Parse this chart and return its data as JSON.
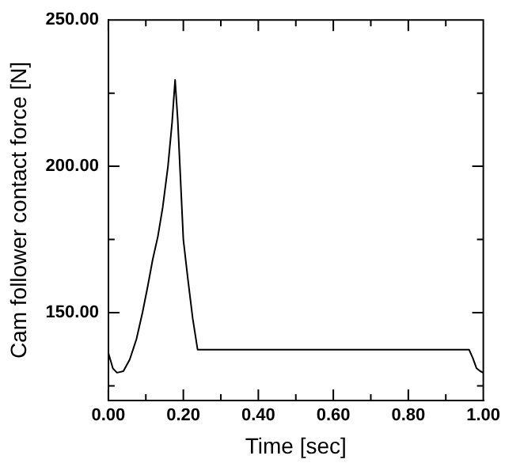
{
  "chart_data": {
    "type": "line",
    "xlabel": "Time [sec]",
    "ylabel": "Cam follower contact force [N]",
    "x": [
      0,
      0.012,
      0.023,
      0.04,
      0.057,
      0.075,
      0.091,
      0.105,
      0.118,
      0.132,
      0.145,
      0.159,
      0.17,
      0.178,
      0.185,
      0.2,
      0.212,
      0.225,
      0.238,
      0.26,
      0.4,
      0.6,
      0.8,
      0.962,
      0.972,
      0.982,
      0.992,
      1.0
    ],
    "series": [
      {
        "color": "#000000",
        "values": [
          136.3,
          131,
          129.5,
          130,
          134,
          141,
          150,
          159,
          168,
          176,
          186,
          200,
          215,
          229.5,
          216,
          175,
          161.6,
          148,
          137.4,
          137.4,
          137.4,
          137.4,
          137.4,
          137.4,
          134.5,
          131,
          130,
          129.5
        ]
      }
    ],
    "xlim": [
      0,
      1
    ],
    "ylim": [
      120,
      250
    ],
    "xticks": [
      {
        "value": 0,
        "label": "0.00"
      },
      {
        "value": 0.1,
        "label": null
      },
      {
        "value": 0.2,
        "label": "0.20"
      },
      {
        "value": 0.3,
        "label": null
      },
      {
        "value": 0.4,
        "label": "0.40"
      },
      {
        "value": 0.5,
        "label": null
      },
      {
        "value": 0.6,
        "label": "0.60"
      },
      {
        "value": 0.7,
        "label": null
      },
      {
        "value": 0.8,
        "label": "0.80"
      },
      {
        "value": 0.9,
        "label": null
      },
      {
        "value": 1,
        "label": "1.00"
      }
    ],
    "yticks": [
      {
        "value": 125,
        "label": null
      },
      {
        "value": 150,
        "label": "150.00"
      },
      {
        "value": 175,
        "label": null
      },
      {
        "value": 200,
        "label": "200.00"
      },
      {
        "value": 225,
        "label": null
      },
      {
        "value": 250,
        "label": "250.00"
      }
    ],
    "grid": false,
    "legend": false,
    "marker": "none",
    "line_style": "solid"
  }
}
